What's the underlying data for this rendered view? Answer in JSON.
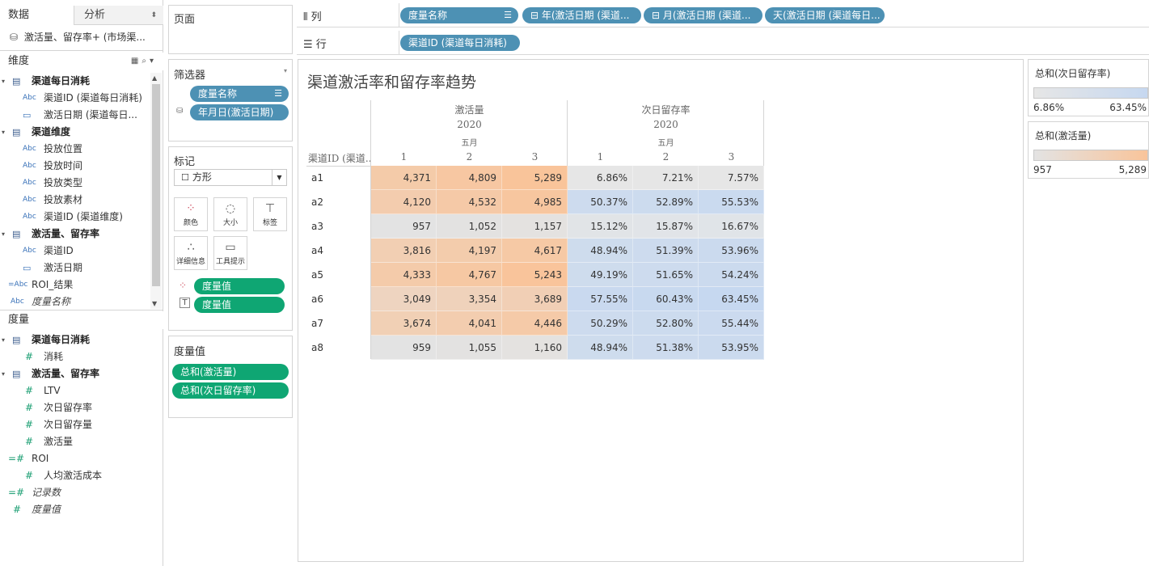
{
  "left_pane": {
    "tabs": {
      "data": "数据",
      "analytics": "分析"
    },
    "datasource": "激活量、留存率+ (市场渠...",
    "dimensions_label": "维度",
    "measures_label": "度量",
    "dimensions": [
      {
        "label": "渠道每日消耗",
        "kind": "table"
      },
      {
        "label": "渠道ID (渠道每日消耗)",
        "kind": "abc"
      },
      {
        "label": "激活日期 (渠道每日...",
        "kind": "date"
      },
      {
        "label": "渠道维度",
        "kind": "table"
      },
      {
        "label": "投放位置",
        "kind": "abc"
      },
      {
        "label": "投放时间",
        "kind": "abc"
      },
      {
        "label": "投放类型",
        "kind": "abc"
      },
      {
        "label": "投放素材",
        "kind": "abc"
      },
      {
        "label": "渠道ID (渠道维度)",
        "kind": "abc"
      },
      {
        "label": "激活量、留存率",
        "kind": "table"
      },
      {
        "label": "渠道ID",
        "kind": "abc"
      },
      {
        "label": "激活日期",
        "kind": "date"
      },
      {
        "label": "ROI_结果",
        "kind": "calc-abc"
      },
      {
        "label": "度量名称",
        "kind": "abc-italic"
      }
    ],
    "measures": [
      {
        "label": "渠道每日消耗",
        "kind": "table"
      },
      {
        "label": "消耗",
        "kind": "num"
      },
      {
        "label": "激活量、留存率",
        "kind": "table"
      },
      {
        "label": "LTV",
        "kind": "num"
      },
      {
        "label": "次日留存率",
        "kind": "num"
      },
      {
        "label": "次日留存量",
        "kind": "num"
      },
      {
        "label": "激活量",
        "kind": "num"
      },
      {
        "label": "ROI",
        "kind": "calc-num"
      },
      {
        "label": "人均激活成本",
        "kind": "num"
      },
      {
        "label": "记录数",
        "kind": "calc-num-italic"
      },
      {
        "label": "度量值",
        "kind": "num-italic"
      }
    ]
  },
  "pages_card": {
    "title": "页面"
  },
  "filters_card": {
    "title": "筛选器",
    "pills": [
      "度量名称",
      "年月日(激活日期)"
    ]
  },
  "marks_card": {
    "title": "标记",
    "mark_type": "方形",
    "buttons": {
      "color": "颜色",
      "size": "大小",
      "label": "标签",
      "detail": "详细信息",
      "tooltip": "工具提示"
    },
    "encodings": [
      "度量值",
      "度量值"
    ]
  },
  "measure_values_card": {
    "title": "度量值",
    "pills": [
      "总和(激活量)",
      "总和(次日留存率)"
    ]
  },
  "columns_shelf": {
    "label": "列",
    "pills": [
      "度量名称",
      "年(激活日期 (渠道...",
      "月(激活日期 (渠道...",
      "天(激活日期 (渠道每日..."
    ]
  },
  "rows_shelf": {
    "label": "行",
    "pills": [
      "渠道ID (渠道每日消耗)"
    ]
  },
  "view": {
    "title": "渠道激活率和留存率趋势",
    "row_header": "渠道ID (渠道...",
    "measure_headers": [
      "激活量",
      "次日留存率"
    ],
    "year": "2020",
    "month": "五月",
    "days": [
      "1",
      "2",
      "3"
    ],
    "rows": [
      {
        "id": "a1",
        "act": [
          "4,371",
          "4,809",
          "5,289"
        ],
        "ret": [
          "6.86%",
          "7.21%",
          "7.57%"
        ]
      },
      {
        "id": "a2",
        "act": [
          "4,120",
          "4,532",
          "4,985"
        ],
        "ret": [
          "50.37%",
          "52.89%",
          "55.53%"
        ]
      },
      {
        "id": "a3",
        "act": [
          "957",
          "1,052",
          "1,157"
        ],
        "ret": [
          "15.12%",
          "15.87%",
          "16.67%"
        ]
      },
      {
        "id": "a4",
        "act": [
          "3,816",
          "4,197",
          "4,617"
        ],
        "ret": [
          "48.94%",
          "51.39%",
          "53.96%"
        ]
      },
      {
        "id": "a5",
        "act": [
          "4,333",
          "4,767",
          "5,243"
        ],
        "ret": [
          "49.19%",
          "51.65%",
          "54.24%"
        ]
      },
      {
        "id": "a6",
        "act": [
          "3,049",
          "3,354",
          "3,689"
        ],
        "ret": [
          "57.55%",
          "60.43%",
          "63.45%"
        ]
      },
      {
        "id": "a7",
        "act": [
          "3,674",
          "4,041",
          "4,446"
        ],
        "ret": [
          "50.29%",
          "52.80%",
          "55.44%"
        ]
      },
      {
        "id": "a8",
        "act": [
          "959",
          "1,055",
          "1,160"
        ],
        "ret": [
          "48.94%",
          "51.38%",
          "53.95%"
        ]
      }
    ]
  },
  "legends": [
    {
      "title": "总和(次日留存率)",
      "min": "6.86%",
      "max": "63.45%",
      "color_low": "#e6e6e6",
      "color_high": "#c6d8f0"
    },
    {
      "title": "总和(激活量)",
      "min": "957",
      "max": "5,289",
      "color_low": "#e3e3e3",
      "color_high": "#f9c49a"
    }
  ],
  "colors": {
    "pill_blue": "#4d91b4",
    "pill_green": "#0fa673"
  }
}
